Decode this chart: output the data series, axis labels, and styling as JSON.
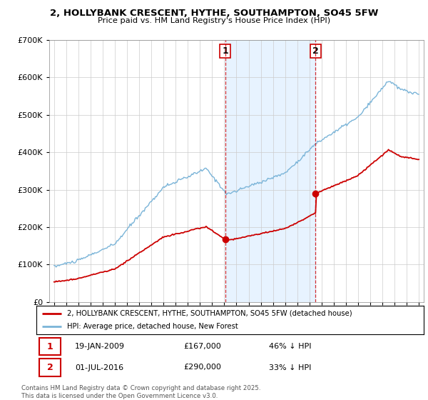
{
  "title": "2, HOLLYBANK CRESCENT, HYTHE, SOUTHAMPTON, SO45 5FW",
  "subtitle": "Price paid vs. HM Land Registry's House Price Index (HPI)",
  "legend_line1": "2, HOLLYBANK CRESCENT, HYTHE, SOUTHAMPTON, SO45 5FW (detached house)",
  "legend_line2": "HPI: Average price, detached house, New Forest",
  "purchase1_date": "19-JAN-2009",
  "purchase1_price": 167000,
  "purchase1_pct": "46% ↓ HPI",
  "purchase2_date": "01-JUL-2016",
  "purchase2_price": 290000,
  "purchase2_pct": "33% ↓ HPI",
  "vline1_x": 2009.08,
  "vline2_x": 2016.5,
  "hpi_color": "#7ab4d8",
  "price_color": "#cc0000",
  "vline_color": "#cc0000",
  "shade_color": "#ddeeff",
  "bg_color": "#ffffff",
  "grid_color": "#cccccc",
  "footer": "Contains HM Land Registry data © Crown copyright and database right 2025.\nThis data is licensed under the Open Government Licence v3.0.",
  "ylim": [
    0,
    700000
  ],
  "xlim_start": 1994.6,
  "xlim_end": 2025.4
}
